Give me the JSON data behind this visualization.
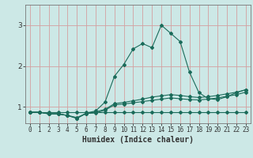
{
  "xlabel": "Humidex (Indice chaleur)",
  "background_color": "#cce8e6",
  "grid_color_h": "#e8b0b0",
  "grid_color_v": "#e8b0b0",
  "line_color": "#1a6b5a",
  "xlim": [
    -0.5,
    23.5
  ],
  "ylim": [
    0.6,
    3.5
  ],
  "yticks": [
    1,
    2,
    3
  ],
  "xticks": [
    0,
    1,
    2,
    3,
    4,
    5,
    6,
    7,
    8,
    9,
    10,
    11,
    12,
    13,
    14,
    15,
    16,
    17,
    18,
    19,
    20,
    21,
    22,
    23
  ],
  "series": [
    {
      "x": [
        0,
        1,
        2,
        3,
        4,
        5,
        6,
        7,
        8,
        9,
        10,
        11,
        12,
        13,
        14,
        15,
        16,
        17,
        18,
        19,
        20,
        21,
        22,
        23
      ],
      "y": [
        0.87,
        0.87,
        0.87,
        0.87,
        0.87,
        0.87,
        0.87,
        0.87,
        0.87,
        0.87,
        0.87,
        0.87,
        0.87,
        0.87,
        0.87,
        0.87,
        0.87,
        0.87,
        0.87,
        0.87,
        0.87,
        0.87,
        0.87,
        0.87
      ]
    },
    {
      "x": [
        0,
        1,
        2,
        3,
        4,
        5,
        6,
        7,
        8,
        9,
        10,
        11,
        12,
        13,
        14,
        15,
        16,
        17,
        18,
        19,
        20,
        21,
        22,
        23
      ],
      "y": [
        0.87,
        0.87,
        0.83,
        0.83,
        0.79,
        0.74,
        0.84,
        0.85,
        0.92,
        1.05,
        1.07,
        1.1,
        1.13,
        1.16,
        1.19,
        1.22,
        1.2,
        1.18,
        1.17,
        1.19,
        1.22,
        1.26,
        1.3,
        1.36
      ]
    },
    {
      "x": [
        0,
        1,
        2,
        3,
        4,
        5,
        6,
        7,
        8,
        9,
        10,
        11,
        12,
        13,
        14,
        15,
        16,
        17,
        18,
        19,
        20,
        21,
        22,
        23
      ],
      "y": [
        0.87,
        0.87,
        0.83,
        0.83,
        0.79,
        0.72,
        0.84,
        0.88,
        0.94,
        1.08,
        1.11,
        1.15,
        1.19,
        1.24,
        1.27,
        1.3,
        1.28,
        1.25,
        1.23,
        1.25,
        1.28,
        1.32,
        1.36,
        1.42
      ]
    },
    {
      "x": [
        0,
        1,
        2,
        3,
        4,
        5,
        6,
        7,
        8,
        9,
        10,
        11,
        12,
        13,
        14,
        15,
        16,
        17,
        18,
        19,
        20,
        21,
        22,
        23
      ],
      "y": [
        0.87,
        0.87,
        0.83,
        0.83,
        0.79,
        0.72,
        0.85,
        0.9,
        1.12,
        1.75,
        2.04,
        2.42,
        2.55,
        2.45,
        3.0,
        2.8,
        2.6,
        1.85,
        1.35,
        1.2,
        1.18,
        1.25,
        1.35,
        1.42
      ]
    }
  ]
}
